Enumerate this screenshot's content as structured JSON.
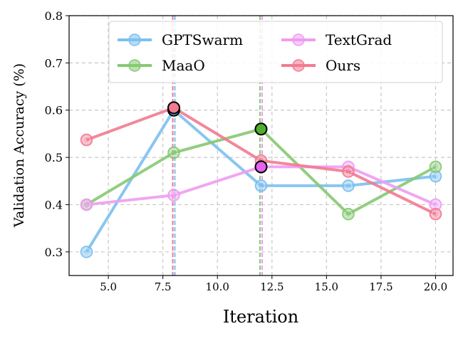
{
  "chart_data": {
    "type": "line",
    "title": "",
    "xlabel": "Iteration",
    "ylabel": "Validation Accuracy (%)",
    "xlim": [
      3.2,
      20.8
    ],
    "ylim": [
      0.25,
      0.8
    ],
    "xticks": [
      5.0,
      7.5,
      10.0,
      12.5,
      15.0,
      17.5,
      20.0
    ],
    "xtick_labels": [
      "5.0",
      "7.5",
      "10.0",
      "12.5",
      "15.0",
      "17.5",
      "20.0"
    ],
    "yticks": [
      0.3,
      0.4,
      0.5,
      0.6,
      0.7,
      0.8
    ],
    "ytick_labels": [
      "0.3",
      "0.4",
      "0.5",
      "0.6",
      "0.7",
      "0.8"
    ],
    "grid": true,
    "legend_position": "top",
    "x": [
      4,
      8,
      12,
      16,
      20
    ],
    "series": [
      {
        "name": "GPTSwarm",
        "color": "#7cc0f0",
        "values": [
          0.3,
          0.6,
          0.44,
          0.44,
          0.46
        ],
        "best_x": 8,
        "best_fill": "#6cb6ec"
      },
      {
        "name": "MaaO",
        "color": "#86c972",
        "values": [
          0.4,
          0.51,
          0.56,
          0.38,
          0.48
        ],
        "best_x": 12,
        "best_fill": "#4fae30"
      },
      {
        "name": "TextGrad",
        "color": "#ee9cf2",
        "values": [
          0.4,
          0.42,
          0.48,
          0.48,
          0.4
        ],
        "best_x": 12,
        "best_fill": "#e264ee"
      },
      {
        "name": "Ours",
        "color": "#f27a90",
        "values": [
          0.537,
          0.605,
          0.493,
          0.47,
          0.38
        ],
        "best_x": 8,
        "best_fill": "#f27a90"
      }
    ]
  }
}
